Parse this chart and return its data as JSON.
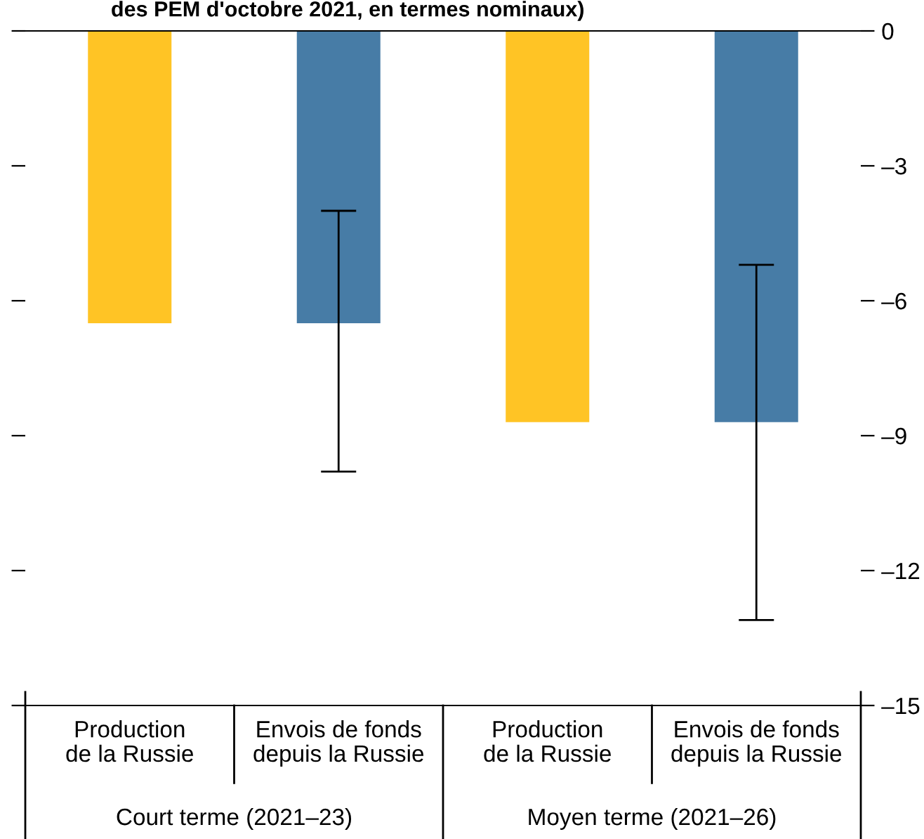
{
  "chart_data": {
    "type": "bar",
    "title": "des PEM d'octobre 2021, en termes nominaux)",
    "categories": [
      "Production\nde la Russie",
      "Envois de fonds\ndepuis la Russie",
      "Production\nde la Russie",
      "Envois de fonds\ndepuis la Russie"
    ],
    "values": [
      -6.5,
      -6.5,
      -8.7,
      -8.7
    ],
    "colors": [
      "#ffc425",
      "#477ca6",
      "#ffc425",
      "#477ca6"
    ],
    "errors": [
      null,
      [
        -9.8,
        -4.0
      ],
      null,
      [
        -13.1,
        -5.2
      ]
    ],
    "ylim": [
      -15,
      0
    ],
    "yticks": [
      0,
      {
        "value": -3,
        "label": "–3"
      },
      {
        "value": -6,
        "label": "–6"
      },
      {
        "value": -9,
        "label": "–9"
      },
      {
        "value": -12,
        "label": "–12"
      },
      {
        "value": -15,
        "label": "–15"
      }
    ],
    "grid": false,
    "legend": false,
    "annotations": [
      "Court terme (2021–23)",
      "Moyen terme (2021–26)"
    ]
  }
}
